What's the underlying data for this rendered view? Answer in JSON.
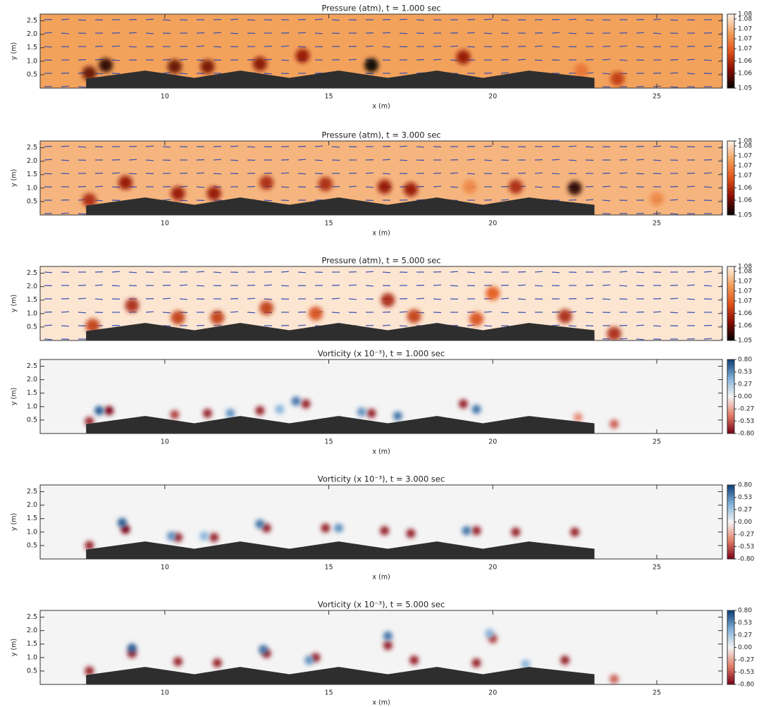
{
  "chart_data": [
    {
      "type": "heatmap",
      "title": "Pressure (atm), t = 1.000 sec",
      "xlabel": "x (m)",
      "ylabel": "y (m)",
      "xlim": [
        6.2,
        27
      ],
      "ylim": [
        0,
        2.75
      ],
      "xticks": [
        10,
        15,
        20,
        25
      ],
      "yticks": [
        0.5,
        {
          "value": 1,
          "label": "1.0"
        },
        1.5,
        {
          "value": 2,
          "label": "2.0"
        },
        2.5
      ],
      "clim": [
        1.05,
        1.08
      ],
      "cticks": [
        1.05,
        {
          "value": 1.056,
          "label": "1.06"
        },
        {
          "value": 1.061,
          "label": "1.06"
        },
        {
          "value": 1.066,
          "label": "1.07"
        },
        1.07,
        {
          "value": 1.074,
          "label": "1.07"
        },
        {
          "value": 1.078,
          "label": "1.08"
        },
        1.08
      ],
      "colormap": [
        "#000000",
        "#8a0c02",
        "#e2541a",
        "#f3a05c",
        "#fdf3ea"
      ],
      "background": "#f3a25c",
      "arrows": true,
      "x": [
        7.7,
        8.2,
        10.3,
        11.3,
        12.9,
        14.2,
        16.3,
        19.1,
        22.7,
        23.8
      ],
      "y": [
        0.55,
        0.85,
        0.8,
        0.8,
        0.9,
        1.2,
        0.85,
        1.15,
        0.65,
        0.35
      ],
      "values": [
        1.055,
        1.052,
        1.055,
        1.056,
        1.057,
        1.058,
        1.05,
        1.058,
        1.068,
        1.062
      ]
    },
    {
      "type": "heatmap",
      "title": "Pressure (atm), t = 3.000 sec",
      "xlabel": "x (m)",
      "ylabel": "y (m)",
      "xlim": [
        6.2,
        27
      ],
      "ylim": [
        0,
        2.75
      ],
      "xticks": [
        10,
        15,
        20,
        25
      ],
      "yticks": [
        0.5,
        {
          "value": 1,
          "label": "1.0"
        },
        1.5,
        {
          "value": 2,
          "label": "2.0"
        },
        2.5
      ],
      "clim": [
        1.05,
        1.08
      ],
      "cticks": [
        1.05,
        {
          "value": 1.056,
          "label": "1.06"
        },
        {
          "value": 1.061,
          "label": "1.06"
        },
        {
          "value": 1.066,
          "label": "1.07"
        },
        1.07,
        {
          "value": 1.074,
          "label": "1.07"
        },
        {
          "value": 1.078,
          "label": "1.08"
        },
        1.08
      ],
      "colormap": [
        "#000000",
        "#8a0c02",
        "#e2541a",
        "#f3a05c",
        "#fdf3ea"
      ],
      "background": "#f6b57e",
      "arrows": true,
      "x": [
        7.7,
        8.8,
        10.4,
        11.5,
        13.1,
        14.9,
        16.7,
        17.5,
        19.3,
        20.7,
        22.5,
        25.0
      ],
      "y": [
        0.55,
        1.2,
        0.8,
        0.8,
        1.2,
        1.15,
        1.05,
        0.95,
        1.05,
        1.05,
        1.0,
        0.6
      ],
      "values": [
        1.06,
        1.058,
        1.058,
        1.058,
        1.06,
        1.06,
        1.058,
        1.058,
        1.07,
        1.06,
        1.052,
        1.07
      ]
    },
    {
      "type": "heatmap",
      "title": "Pressure (atm), t = 5.000 sec",
      "ylabel": "y (m)",
      "xlim": [
        6.2,
        27
      ],
      "ylim": [
        0,
        2.75
      ],
      "yticks": [
        0.5,
        {
          "value": 1,
          "label": "1.0"
        },
        1.5,
        {
          "value": 2,
          "label": "2.0"
        },
        2.5
      ],
      "clim": [
        1.05,
        1.08
      ],
      "cticks": [
        1.05,
        {
          "value": 1.056,
          "label": "1.06"
        },
        {
          "value": 1.061,
          "label": "1.06"
        },
        {
          "value": 1.066,
          "label": "1.07"
        },
        1.07,
        {
          "value": 1.074,
          "label": "1.07"
        },
        {
          "value": 1.078,
          "label": "1.08"
        },
        1.08
      ],
      "colormap": [
        "#000000",
        "#8a0c02",
        "#e2541a",
        "#f3a05c",
        "#fdf3ea"
      ],
      "background": "#fce6d2",
      "arrows": true,
      "x": [
        7.8,
        9.0,
        10.4,
        11.6,
        13.1,
        14.6,
        16.8,
        17.6,
        19.5,
        20.0,
        22.2,
        23.7
      ],
      "y": [
        0.55,
        1.3,
        0.85,
        0.85,
        1.2,
        1.0,
        1.5,
        0.9,
        0.8,
        1.75,
        0.9,
        0.25
      ],
      "values": [
        1.062,
        1.06,
        1.062,
        1.062,
        1.062,
        1.064,
        1.06,
        1.062,
        1.064,
        1.065,
        1.06,
        1.06
      ]
    },
    {
      "type": "heatmap",
      "title": "Vorticity (x 10⁻³), t = 1.000 sec",
      "xlabel": "x (m)",
      "ylabel": "y (m)",
      "xlim": [
        6.2,
        27
      ],
      "ylim": [
        0,
        2.75
      ],
      "xticks": [
        10,
        15,
        20,
        25
      ],
      "yticks": [
        0.5,
        {
          "value": 1,
          "label": "1.0"
        },
        1.5,
        {
          "value": 2,
          "label": "2.0"
        },
        2.5
      ],
      "clim": [
        -0.8,
        0.8
      ],
      "cticks": [
        {
          "value": 0.8,
          "label": "0.80"
        },
        0.53,
        0.27,
        {
          "value": 0,
          "label": "0.00"
        },
        -0.27,
        -0.53,
        {
          "value": -0.8,
          "label": "-0.80"
        }
      ],
      "colormap": [
        "#7a0016",
        "#e4806a",
        "#f4f4f4",
        "#7fb0d8",
        "#0b3c78"
      ],
      "background": "#f4f4f4",
      "arrows": false,
      "x": [
        7.7,
        8.3,
        10.3,
        11.3,
        12.9,
        14.3,
        16.3,
        19.1,
        22.6,
        23.7,
        8.0,
        12.0,
        14.0,
        16.0,
        17.1,
        19.5,
        13.5
      ],
      "y": [
        0.45,
        0.85,
        0.7,
        0.75,
        0.85,
        1.1,
        0.75,
        1.1,
        0.6,
        0.35,
        0.85,
        0.75,
        1.2,
        0.8,
        0.65,
        0.9,
        0.9
      ],
      "values": [
        -0.7,
        -0.8,
        -0.6,
        -0.7,
        -0.7,
        -0.7,
        -0.7,
        -0.7,
        -0.4,
        -0.5,
        0.7,
        0.5,
        0.6,
        0.5,
        0.6,
        0.6,
        0.4
      ]
    },
    {
      "type": "heatmap",
      "title": "Vorticity (x 10⁻³), t = 3.000 sec",
      "xlabel": "x (m)",
      "ylabel": "y (m)",
      "xlim": [
        6.2,
        27
      ],
      "ylim": [
        0,
        2.75
      ],
      "xticks": [
        10,
        15,
        20,
        25
      ],
      "yticks": [
        0.5,
        {
          "value": 1,
          "label": "1.0"
        },
        1.5,
        {
          "value": 2,
          "label": "2.0"
        },
        2.5
      ],
      "clim": [
        -0.8,
        0.8
      ],
      "cticks": [
        {
          "value": 0.8,
          "label": "0.80"
        },
        0.53,
        0.27,
        {
          "value": 0,
          "label": "0.00"
        },
        -0.27,
        -0.53,
        {
          "value": -0.8,
          "label": "-0.80"
        }
      ],
      "colormap": [
        "#7a0016",
        "#e4806a",
        "#f4f4f4",
        "#7fb0d8",
        "#0b3c78"
      ],
      "background": "#f4f4f4",
      "arrows": false,
      "x": [
        7.7,
        8.8,
        10.4,
        11.5,
        13.1,
        14.9,
        16.7,
        17.5,
        19.5,
        20.7,
        22.5,
        8.7,
        10.2,
        12.9,
        15.3,
        19.2,
        11.2
      ],
      "y": [
        0.5,
        1.1,
        0.8,
        0.8,
        1.15,
        1.15,
        1.05,
        0.95,
        1.05,
        1.0,
        1.0,
        1.35,
        0.85,
        1.3,
        1.15,
        1.05,
        0.85
      ],
      "values": [
        -0.7,
        -0.8,
        -0.7,
        -0.7,
        -0.7,
        -0.7,
        -0.7,
        -0.7,
        -0.7,
        -0.7,
        -0.7,
        0.7,
        0.5,
        0.6,
        0.5,
        0.6,
        0.4
      ]
    },
    {
      "type": "heatmap",
      "title": "Vorticity (x 10⁻³), t = 5.000 sec",
      "xlabel": "x (m)",
      "ylabel": "y (m)",
      "xlim": [
        6.2,
        27
      ],
      "ylim": [
        0,
        2.75
      ],
      "xticks": [
        10,
        15,
        20,
        25
      ],
      "yticks": [
        0.5,
        {
          "value": 1,
          "label": "1.0"
        },
        1.5,
        {
          "value": 2,
          "label": "2.0"
        },
        2.5
      ],
      "clim": [
        -0.8,
        0.8
      ],
      "cticks": [
        {
          "value": 0.8,
          "label": "0.80"
        },
        0.53,
        0.27,
        {
          "value": 0,
          "label": "0.00"
        },
        -0.27,
        -0.53,
        {
          "value": -0.8,
          "label": "-0.80"
        }
      ],
      "colormap": [
        "#7a0016",
        "#e4806a",
        "#f4f4f4",
        "#7fb0d8",
        "#0b3c78"
      ],
      "background": "#f4f4f4",
      "arrows": false,
      "x": [
        7.7,
        9.0,
        10.4,
        11.6,
        13.1,
        14.6,
        16.8,
        17.6,
        19.5,
        20.0,
        22.2,
        23.7,
        9.0,
        13.0,
        16.8,
        14.4,
        19.9,
        21.0
      ],
      "y": [
        0.5,
        1.15,
        0.85,
        0.8,
        1.15,
        1.0,
        1.45,
        0.9,
        0.8,
        1.7,
        0.9,
        0.2,
        1.35,
        1.3,
        1.8,
        0.9,
        1.9,
        0.75
      ],
      "values": [
        -0.7,
        -0.7,
        -0.7,
        -0.7,
        -0.7,
        -0.7,
        -0.7,
        -0.7,
        -0.7,
        -0.6,
        -0.7,
        -0.5,
        0.7,
        0.6,
        0.6,
        0.5,
        0.4,
        0.4
      ]
    }
  ]
}
